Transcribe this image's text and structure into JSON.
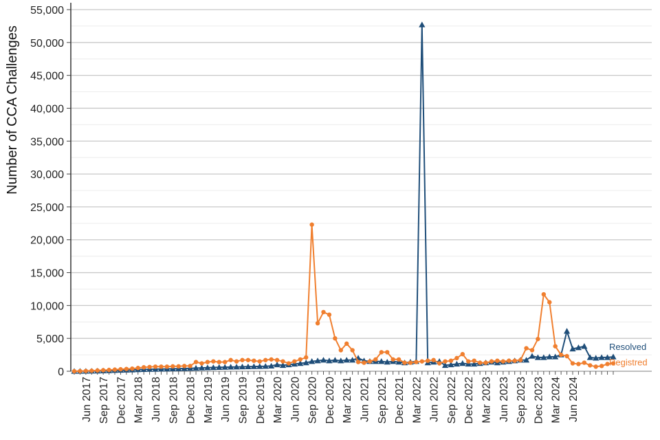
{
  "chart_data": {
    "type": "line",
    "ylabel": "Number of CCA Challenges",
    "xlabel": "",
    "ylim": [
      0,
      55000
    ],
    "y_ticks": [
      "0",
      "5,000",
      "10,000",
      "15,000",
      "20,000",
      "25,000",
      "30,000",
      "35,000",
      "40,000",
      "45,000",
      "50,000",
      "55,000"
    ],
    "y_tick_values": [
      0,
      5000,
      10000,
      15000,
      20000,
      25000,
      30000,
      35000,
      40000,
      45000,
      50000,
      55000
    ],
    "grid": "horizontal",
    "x_tick_labels": [
      "Jun 2017",
      "Sep 2017",
      "Dec 2017",
      "Mar 2018",
      "Jun 2018",
      "Sep 2018",
      "Dec 2018",
      "Mar 2019",
      "Jun 2019",
      "Sep 2019",
      "Dec 2019",
      "Mar 2020",
      "Jun 2020",
      "Sep 2020",
      "Dec 2020",
      "Mar 2021",
      "Jun 2021",
      "Sep 2021",
      "Dec 2021",
      "Mar 2022",
      "Jun 2022",
      "Sep 2022",
      "Dec 2022",
      "Mar 2023",
      "Jun 2023",
      "Sep 2023",
      "Dec 2023",
      "Mar 2024",
      "Jun 2024"
    ],
    "x_start": "Apr 2017",
    "x_end": "Jul 2024",
    "series": [
      {
        "name": "Resolved",
        "color": "#1f4e79",
        "marker": "triangle",
        "values": [
          0,
          10,
          20,
          30,
          50,
          70,
          100,
          130,
          160,
          190,
          220,
          250,
          280,
          300,
          320,
          340,
          360,
          380,
          400,
          420,
          450,
          480,
          510,
          540,
          570,
          600,
          620,
          640,
          660,
          680,
          700,
          720,
          740,
          760,
          800,
          1000,
          900,
          1000,
          1100,
          1200,
          1300,
          1500,
          1600,
          1700,
          1600,
          1700,
          1600,
          1700,
          1700,
          2000,
          1600,
          1500,
          1500,
          1500,
          1400,
          1500,
          1400,
          1300,
          1400,
          1500,
          52700,
          1300,
          1400,
          1500,
          900,
          1000,
          1100,
          1200,
          1100,
          1100,
          1200,
          1300,
          1400,
          1300,
          1400,
          1500,
          1600,
          1700,
          1700,
          2300,
          2100,
          2100,
          2200,
          2200,
          2500,
          6100,
          3400,
          3600,
          3800,
          2100,
          2000,
          2100,
          2100,
          2200
        ]
      },
      {
        "name": "Registred",
        "color": "#f07f2f",
        "marker": "circle",
        "values": [
          0,
          20,
          50,
          80,
          120,
          160,
          200,
          250,
          300,
          350,
          400,
          500,
          600,
          650,
          700,
          700,
          700,
          750,
          750,
          800,
          800,
          1400,
          1200,
          1400,
          1500,
          1400,
          1400,
          1700,
          1500,
          1700,
          1700,
          1600,
          1500,
          1700,
          1800,
          1700,
          1500,
          1200,
          1500,
          1800,
          2100,
          22300,
          7300,
          9000,
          8600,
          5000,
          3200,
          4200,
          3200,
          1400,
          1300,
          1500,
          1800,
          2900,
          2900,
          1800,
          1800,
          1300,
          1300,
          1400,
          1500,
          1600,
          1700,
          1200,
          1500,
          1600,
          2000,
          2600,
          1500,
          1600,
          1300,
          1300,
          1500,
          1600,
          1500,
          1600,
          1600,
          1700,
          3500,
          3200,
          4900,
          11700,
          10500,
          3800,
          2500,
          2300,
          1200,
          1100,
          1300,
          900,
          700,
          800,
          1100,
          1200
        ]
      }
    ]
  }
}
